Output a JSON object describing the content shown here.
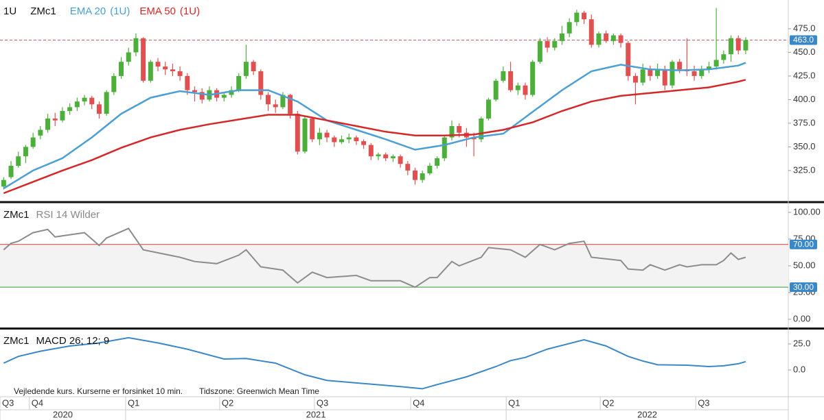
{
  "chart_data": [
    {
      "type": "candlestick",
      "symbol": "1U",
      "title": "ZMc1",
      "ylim": [
        293,
        505.4
      ],
      "yticks": [
        {
          "value": 325,
          "label": "325.0"
        },
        {
          "value": 350,
          "label": "350.0"
        },
        {
          "value": 375,
          "label": "375.0"
        },
        {
          "value": 400,
          "label": "400.0"
        },
        {
          "value": 425,
          "label": "425.0"
        },
        {
          "value": 450,
          "label": "450.0"
        },
        {
          "value": 475,
          "label": "475.0"
        }
      ],
      "last_price": {
        "value": 463,
        "label": "463.0"
      },
      "series": [
        {
          "up_color": "#4caf3a",
          "down_color": "#e05050",
          "values": [
            [
              308,
              318,
              305,
              315
            ],
            [
              318,
              335,
              316,
              330
            ],
            [
              330,
              345,
              328,
              340
            ],
            [
              340,
              352,
              333,
              350
            ],
            [
              350,
              365,
              348,
              360
            ],
            [
              362,
              372,
              358,
              368
            ],
            [
              368,
              385,
              365,
              380
            ],
            [
              380,
              386,
              372,
              378
            ],
            [
              378,
              392,
              376,
              388
            ],
            [
              388,
              396,
              384,
              392
            ],
            [
              392,
              402,
              388,
              398
            ],
            [
              398,
              405,
              394,
              402
            ],
            [
              402,
              404,
              390,
              395
            ],
            [
              395,
              398,
              380,
              385
            ],
            [
              385,
              410,
              383,
              408
            ],
            [
              408,
              428,
              405,
              425
            ],
            [
              425,
              445,
              422,
              440
            ],
            [
              440,
              455,
              436,
              450
            ],
            [
              450,
              470,
              446,
              465
            ],
            [
              465,
              466,
              418,
              420
            ],
            [
              420,
              442,
              418,
              440
            ],
            [
              440,
              444,
              430,
              435
            ],
            [
              435,
              440,
              426,
              432
            ],
            [
              432,
              438,
              425,
              430
            ],
            [
              430,
              435,
              420,
              425
            ],
            [
              425,
              428,
              405,
              410
            ],
            [
              410,
              414,
              398,
              408
            ],
            [
              408,
              412,
              396,
              400
            ],
            [
              400,
              414,
              398,
              410
            ],
            [
              410,
              412,
              398,
              402
            ],
            [
              402,
              408,
              398,
              405
            ],
            [
              405,
              414,
              402,
              410
            ],
            [
              410,
              428,
              408,
              425
            ],
            [
              425,
              458,
              422,
              440
            ],
            [
              440,
              442,
              426,
              430
            ],
            [
              430,
              432,
              400,
              405
            ],
            [
              405,
              408,
              388,
              395
            ],
            [
              395,
              400,
              386,
              392
            ],
            [
              392,
              408,
              390,
              405
            ],
            [
              405,
              406,
              380,
              385
            ],
            [
              385,
              388,
              342,
              345
            ],
            [
              345,
              382,
              343,
              380
            ],
            [
              380,
              382,
              355,
              358
            ],
            [
              358,
              370,
              352,
              365
            ],
            [
              365,
              368,
              355,
              360
            ],
            [
              360,
              362,
              350,
              355
            ],
            [
              355,
              362,
              353,
              358
            ],
            [
              358,
              364,
              354,
              360
            ],
            [
              360,
              362,
              352,
              356
            ],
            [
              356,
              358,
              348,
              352
            ],
            [
              352,
              354,
              336,
              340
            ],
            [
              340,
              344,
              336,
              342
            ],
            [
              342,
              344,
              335,
              338
            ],
            [
              338,
              342,
              334,
              340
            ],
            [
              340,
              342,
              328,
              332
            ],
            [
              332,
              335,
              320,
              325
            ],
            [
              325,
              328,
              310,
              315
            ],
            [
              315,
              325,
              312,
              322
            ],
            [
              322,
              333,
              320,
              330
            ],
            [
              330,
              340,
              327,
              338
            ],
            [
              338,
              362,
              335,
              360
            ],
            [
              360,
              378,
              357,
              372
            ],
            [
              372,
              375,
              360,
              365
            ],
            [
              365,
              370,
              350,
              360
            ],
            [
              360,
              365,
              340,
              358
            ],
            [
              358,
              382,
              355,
              380
            ],
            [
              380,
              402,
              378,
              400
            ],
            [
              400,
              422,
              398,
              420
            ],
            [
              420,
              435,
              418,
              430
            ],
            [
              430,
              440,
              408,
              410
            ],
            [
              410,
              418,
              405,
              415
            ],
            [
              415,
              418,
              400,
              405
            ],
            [
              405,
              442,
              403,
              440
            ],
            [
              440,
              465,
              438,
              462
            ],
            [
              462,
              466,
              450,
              455
            ],
            [
              455,
              465,
              452,
              462
            ],
            [
              462,
              478,
              458,
              470
            ],
            [
              470,
              486,
              466,
              482
            ],
            [
              482,
              495,
              478,
              492
            ],
            [
              492,
              494,
              480,
              485
            ],
            [
              485,
              490,
              455,
              458
            ],
            [
              458,
              472,
              455,
              470
            ],
            [
              470,
              473,
              460,
              462
            ],
            [
              462,
              470,
              458,
              468
            ],
            [
              468,
              470,
              455,
              460
            ],
            [
              460,
              462,
              420,
              425
            ],
            [
              425,
              428,
              395,
              418
            ],
            [
              418,
              438,
              415,
              432
            ],
            [
              432,
              436,
              420,
              425
            ],
            [
              425,
              438,
              422,
              432
            ],
            [
              432,
              436,
              410,
              415
            ],
            [
              415,
              442,
              412,
              440
            ],
            [
              440,
              443,
              428,
              432
            ],
            [
              432,
              465,
              425,
              430
            ],
            [
              430,
              436,
              420,
              425
            ],
            [
              425,
              436,
              422,
              432
            ],
            [
              432,
              440,
              428,
              435
            ],
            [
              435,
              497,
              432,
              442
            ],
            [
              442,
              452,
              438,
              448
            ],
            [
              448,
              468,
              440,
              465
            ],
            [
              465,
              468,
              448,
              452
            ],
            [
              452,
              466,
              448,
              463
            ]
          ]
        },
        {
          "name": "EMA 20",
          "interval": "(1U)",
          "color": "#4a9fd4",
          "x": [
            0,
            4,
            8,
            12,
            16,
            20,
            24,
            28,
            32,
            36,
            40,
            44,
            48,
            52,
            56,
            60,
            64,
            68,
            72,
            76,
            80,
            84,
            88,
            92,
            96,
            100,
            101
          ],
          "values": [
            306,
            325,
            338,
            360,
            385,
            402,
            409,
            405,
            410,
            410,
            398,
            378,
            368,
            358,
            347,
            352,
            360,
            364,
            387,
            410,
            430,
            437,
            432,
            431,
            432,
            436,
            439
          ]
        },
        {
          "name": "EMA 50",
          "interval": "(1U)",
          "color": "#d62728",
          "x": [
            0,
            4,
            8,
            12,
            16,
            20,
            24,
            28,
            32,
            36,
            40,
            44,
            48,
            52,
            56,
            60,
            64,
            68,
            72,
            76,
            80,
            84,
            88,
            92,
            96,
            100,
            101
          ],
          "values": [
            301,
            313,
            325,
            336,
            349,
            360,
            368,
            374,
            379,
            384,
            384,
            378,
            372,
            366,
            362,
            362,
            363,
            368,
            376,
            388,
            398,
            404,
            407,
            410,
            413,
            419,
            421
          ]
        }
      ]
    },
    {
      "type": "line",
      "title": "ZMc1",
      "indicator": "RSI 14 Wilder",
      "ylim": [
        -7.7,
        108.3
      ],
      "yticks": [
        {
          "value": 0,
          "label": "0.00"
        },
        {
          "value": 25,
          "label": "25.00"
        },
        {
          "value": 50,
          "label": "50.00"
        },
        {
          "value": 75,
          "label": "75.00"
        },
        {
          "value": 100,
          "label": "100.00"
        }
      ],
      "levels": [
        {
          "value": 70,
          "label": "70.00",
          "color": "#d03a3a"
        },
        {
          "value": 30,
          "label": "30.00",
          "color": "#2f9e2f"
        }
      ],
      "series": [
        {
          "color": "#8c8c8c",
          "x": [
            0,
            1,
            2,
            4,
            6,
            7,
            11,
            13,
            14,
            17,
            19,
            24,
            26,
            29,
            32,
            33,
            35,
            38,
            40,
            42,
            44,
            48,
            50,
            54,
            56,
            58,
            59,
            61,
            62,
            65,
            66,
            69,
            71,
            73,
            75,
            77,
            79,
            80,
            84,
            85,
            87,
            88,
            90,
            92,
            93,
            95,
            97,
            98,
            99,
            100,
            101
          ],
          "values": [
            65,
            71,
            73,
            81,
            84,
            77,
            81,
            69,
            76,
            85,
            65,
            58,
            54,
            52,
            60,
            65,
            49,
            46,
            34,
            44,
            39,
            41,
            36,
            36,
            30,
            39,
            39,
            54,
            50,
            58,
            67,
            65,
            58,
            70,
            65,
            71,
            73,
            58,
            55,
            47,
            46,
            51,
            46,
            51,
            49,
            51,
            51,
            55,
            62,
            56,
            58
          ]
        }
      ]
    },
    {
      "type": "line",
      "title": "ZMc1",
      "indicator": "MACD 26; 12; 9",
      "ylim": [
        -25,
        38.8
      ],
      "yticks": [
        {
          "value": 0,
          "label": "0.0"
        },
        {
          "value": 25,
          "label": "25.0"
        }
      ],
      "series": [
        {
          "color": "#3a87c8",
          "x": [
            0,
            2,
            5,
            9,
            13,
            17,
            21,
            25,
            30,
            33,
            37,
            41,
            44,
            49,
            54,
            57,
            59,
            63,
            67,
            69,
            71,
            74,
            79,
            82,
            85,
            87,
            89,
            93,
            96,
            98,
            100,
            101
          ],
          "values": [
            6.6,
            13,
            18,
            23,
            26,
            31,
            26,
            20,
            10.5,
            11,
            6.6,
            -4.6,
            -10,
            -13,
            -16,
            -18,
            -14,
            -6.6,
            3.3,
            9,
            12,
            20,
            29,
            23,
            13,
            8.6,
            5,
            4.6,
            3.3,
            4,
            6,
            8
          ]
        }
      ]
    }
  ],
  "x_axis": {
    "xlim": [
      -0.5,
      106.8
    ],
    "xticks": [
      {
        "value": -0.5,
        "label": "Q3"
      },
      {
        "value": 3.5,
        "label": "Q4"
      },
      {
        "value": 16.6,
        "label": "Q1"
      },
      {
        "value": 29.4,
        "label": "Q2"
      },
      {
        "value": 42.3,
        "label": "Q3"
      },
      {
        "value": 55.4,
        "label": "Q4"
      },
      {
        "value": 68.4,
        "label": "Q1"
      },
      {
        "value": 81.2,
        "label": "Q2"
      },
      {
        "value": 94.2,
        "label": "Q3"
      }
    ],
    "years": [
      {
        "value": -0.5,
        "label": "2020"
      },
      {
        "value": 16.6,
        "label": "2021"
      },
      {
        "value": 68.4,
        "label": "2022"
      }
    ]
  },
  "footer": {
    "disclaimer": "Vejledende kurs. Kurserne er forsinket 10 min.",
    "timezone": "Tidszone: Greenwich Mean Time"
  }
}
